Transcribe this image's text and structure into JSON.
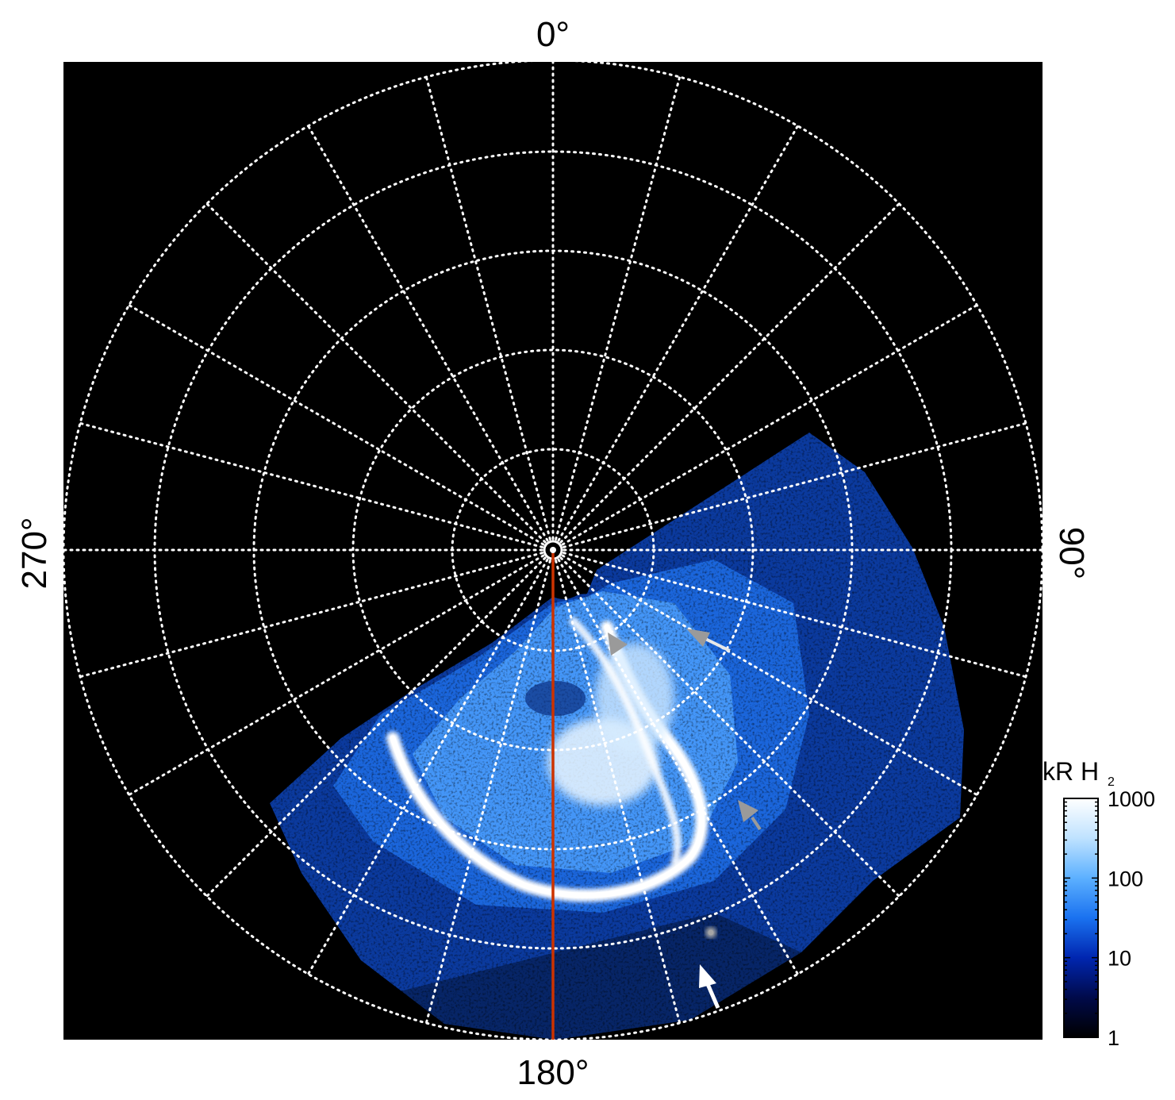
{
  "labels": {
    "top": "0°",
    "right": "90°",
    "bottom": "180°",
    "left": "270°"
  },
  "colorbar": {
    "title": "kR H",
    "title_sub": "2",
    "scale": "log",
    "range": [
      1,
      1000
    ],
    "ticks": [
      "1000",
      "100",
      "10",
      "1"
    ],
    "colors": [
      "#000000",
      "#000a4a",
      "#0026b0",
      "#1a72f0",
      "#5cb0ff",
      "#bfe2ff",
      "#ffffff"
    ]
  },
  "colors": {
    "background": "#000000",
    "grid": "#ffffff",
    "meridian_line": "#cc3300",
    "arrow_gray": "#9a9a9a",
    "arrow_white": "#ffffff"
  },
  "projection": "polar",
  "meridian_longitude": "180°",
  "arrows": [
    {
      "color": "gray"
    },
    {
      "color": "white"
    },
    {
      "color": "gray"
    },
    {
      "color": "white"
    }
  ]
}
